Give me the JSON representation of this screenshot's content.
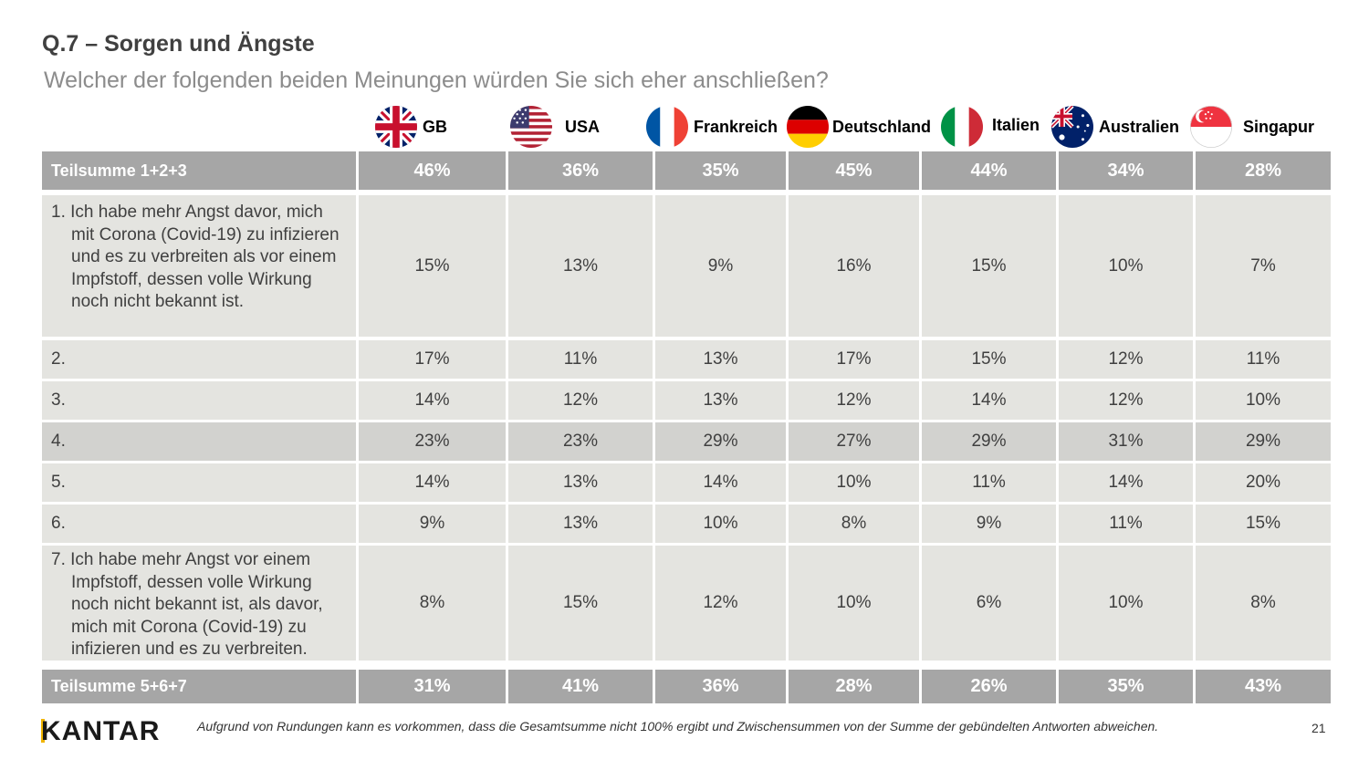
{
  "title": "Q.7 – Sorgen und Ängste",
  "subtitle": "Welcher der folgenden beiden Meinungen würden Sie sich eher anschließen?",
  "countries": [
    {
      "name": "GB",
      "flag": "uk-flag-icon"
    },
    {
      "name": "USA",
      "flag": "us-flag-icon"
    },
    {
      "name": "Frankreich",
      "flag": "france-flag-icon"
    },
    {
      "name": "Deutschland",
      "flag": "germany-flag-icon"
    },
    {
      "name": "Italien",
      "flag": "italy-flag-icon"
    },
    {
      "name": "Australien",
      "flag": "australia-flag-icon"
    },
    {
      "name": "Singapur",
      "flag": "singapore-flag-icon"
    }
  ],
  "table": {
    "rows": [
      {
        "label": "Teilsumme 1+2+3",
        "values": [
          "46%",
          "36%",
          "35%",
          "45%",
          "44%",
          "34%",
          "28%"
        ]
      },
      {
        "label": "1. Ich habe mehr Angst davor, mich mit Corona (Covid-19) zu infizieren und es zu verbreiten als vor einem Impfstoff, dessen volle Wirkung noch nicht bekannt ist.",
        "values": [
          "15%",
          "13%",
          "9%",
          "16%",
          "15%",
          "10%",
          "7%"
        ]
      },
      {
        "label": "2.",
        "values": [
          "17%",
          "11%",
          "13%",
          "17%",
          "15%",
          "12%",
          "11%"
        ]
      },
      {
        "label": "3.",
        "values": [
          "14%",
          "12%",
          "13%",
          "12%",
          "14%",
          "12%",
          "10%"
        ]
      },
      {
        "label": "4.",
        "values": [
          "23%",
          "23%",
          "29%",
          "27%",
          "29%",
          "31%",
          "29%"
        ]
      },
      {
        "label": "5.",
        "values": [
          "14%",
          "13%",
          "14%",
          "10%",
          "11%",
          "14%",
          "20%"
        ]
      },
      {
        "label": "6.",
        "values": [
          "9%",
          "13%",
          "10%",
          "8%",
          "9%",
          "11%",
          "15%"
        ]
      },
      {
        "label": "7. Ich habe mehr Angst vor einem Impfstoff, dessen volle Wirkung noch nicht bekannt ist, als davor, mich mit Corona (Covid-19) zu infizieren und es zu verbreiten.",
        "values": [
          "8%",
          "15%",
          "12%",
          "10%",
          "6%",
          "10%",
          "8%"
        ]
      },
      {
        "label": "Teilsumme 5+6+7",
        "values": [
          "31%",
          "41%",
          "36%",
          "28%",
          "26%",
          "35%",
          "43%"
        ]
      }
    ]
  },
  "logo": "KANTAR",
  "footnote": "Aufgrund von Rundungen kann es vorkommen, dass die Gesamtsumme nicht 100% ergibt und Zwischensummen von der Summe der gebündelten Antworten abweichen.",
  "page_number": "21",
  "colors": {
    "sum_row": "#a6a6a6",
    "light_row": "#e4e4e0",
    "mid_row": "#d2d2cf",
    "logo_accent": "#f0b400"
  }
}
